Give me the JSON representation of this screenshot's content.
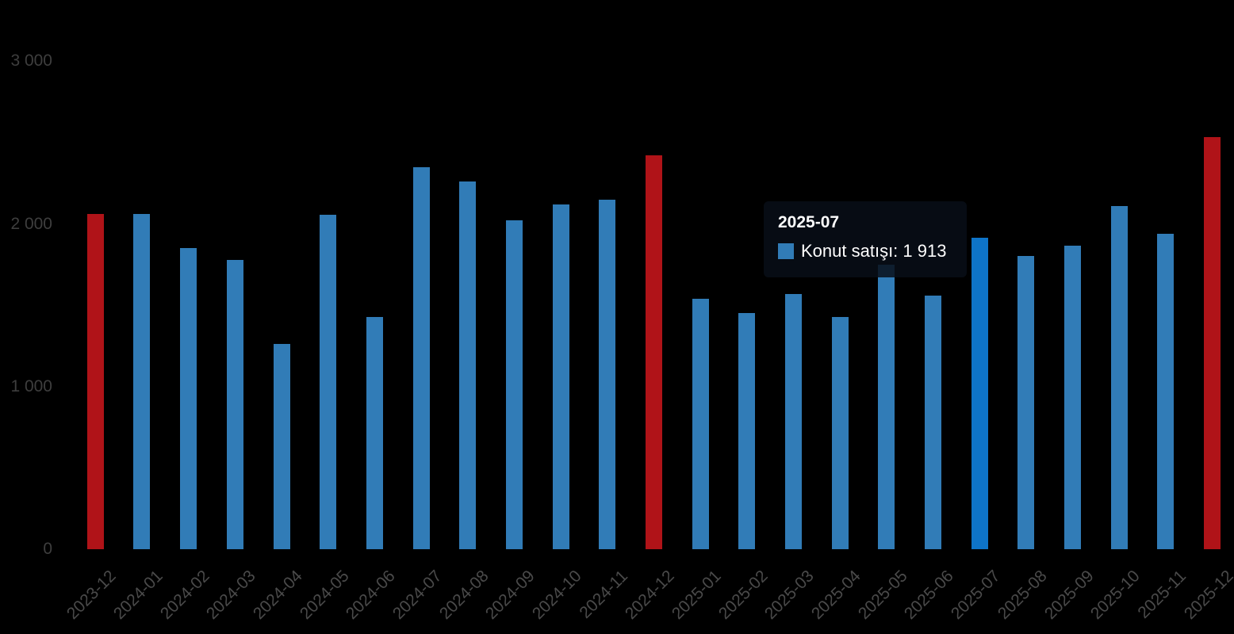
{
  "chart_data": {
    "type": "bar",
    "title": "",
    "xlabel": "",
    "ylabel": "",
    "grid": "off",
    "legend": "off",
    "ylim": [
      0,
      3000
    ],
    "yticks": [
      {
        "value": 0,
        "label": "0"
      },
      {
        "value": 1000,
        "label": "1 000"
      },
      {
        "value": 2000,
        "label": "2 000"
      },
      {
        "value": 3000,
        "label": "3 000"
      }
    ],
    "categories": [
      "2023-12",
      "2024-01",
      "2024-02",
      "2024-03",
      "2024-04",
      "2024-05",
      "2024-06",
      "2024-07",
      "2024-08",
      "2024-09",
      "2024-10",
      "2024-11",
      "2024-12",
      "2025-01",
      "2025-02",
      "2025-03",
      "2025-04",
      "2025-05",
      "2025-06",
      "2025-07",
      "2025-08",
      "2025-09",
      "2025-10",
      "2025-11",
      "2025-12"
    ],
    "series": [
      {
        "name": "Konut satışı",
        "values": [
          2060,
          2060,
          1850,
          1780,
          1260,
          2055,
          1430,
          2350,
          2260,
          2020,
          2120,
          2150,
          2420,
          1540,
          1450,
          1570,
          1430,
          1750,
          1560,
          1913,
          1805,
          1865,
          2110,
          1940,
          2535
        ]
      }
    ],
    "highlight_categories": [
      "2023-12",
      "2024-12",
      "2025-12"
    ],
    "hover_category": "2025-07"
  },
  "tooltip": {
    "title": "2025-07",
    "series_label": "Konut satışı",
    "value": "1 913",
    "body": "Konut satışı: 1 913"
  },
  "colors": {
    "background": "#000000",
    "bar": "#317cb7",
    "bar_highlight": "#b01318",
    "bar_hover": "#0e74c8",
    "yaxis_label": "#3e3e3e",
    "xaxis_label": "#4a4a4a",
    "tooltip_bg": "rgba(8,14,24,0.85)",
    "tooltip_text": "#ffffff"
  }
}
